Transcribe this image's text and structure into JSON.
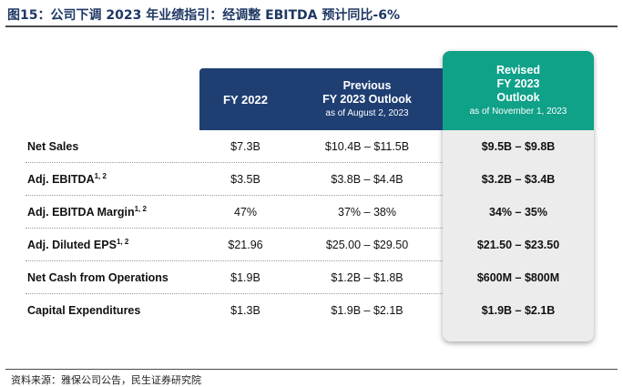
{
  "figure": {
    "title": "图15：公司下调 2023 年业绩指引：经调整 EBITDA 预计同比-6%",
    "source": "资料来源：雅保公司公告，民生证券研究院"
  },
  "columns": {
    "fy2022": {
      "label": "FY 2022"
    },
    "previous": {
      "line1": "Previous",
      "line2": "FY 2023 Outlook",
      "sub": "as of August 2, 2023"
    },
    "revised": {
      "line1": "Revised",
      "line2": "FY 2023",
      "line3": "Outlook",
      "sub": "as of November 1, 2023"
    }
  },
  "rows": [
    {
      "label": "Net Sales",
      "sup": "",
      "fy2022": "$7.3B",
      "previous": "$10.4B – $11.5B",
      "revised": "$9.5B – $9.8B"
    },
    {
      "label": "Adj. EBITDA",
      "sup": "1, 2",
      "fy2022": "$3.5B",
      "previous": "$3.8B – $4.4B",
      "revised": "$3.2B – $3.4B"
    },
    {
      "label": "Adj. EBITDA Margin",
      "sup": "1, 2",
      "fy2022": "47%",
      "previous": "37% – 38%",
      "revised": "34% – 35%"
    },
    {
      "label": "Adj. Diluted EPS",
      "sup": "1, 2",
      "fy2022": "$21.96",
      "previous": "$25.00 – $29.50",
      "revised": "$21.50 – $23.50"
    },
    {
      "label": "Net Cash from Operations",
      "sup": "",
      "fy2022": "$1.9B",
      "previous": "$1.2B – $1.8B",
      "revised": "$600M – $800M"
    },
    {
      "label": "Capital Expenditures",
      "sup": "",
      "fy2022": "$1.3B",
      "previous": "$1.9B – $2.1B",
      "revised": "$1.9B – $2.1B"
    }
  ],
  "colors": {
    "header_navy": "#1f3f73",
    "header_teal": "#10a189",
    "title_text": "#1f3864",
    "revised_bg": "#ececec"
  }
}
